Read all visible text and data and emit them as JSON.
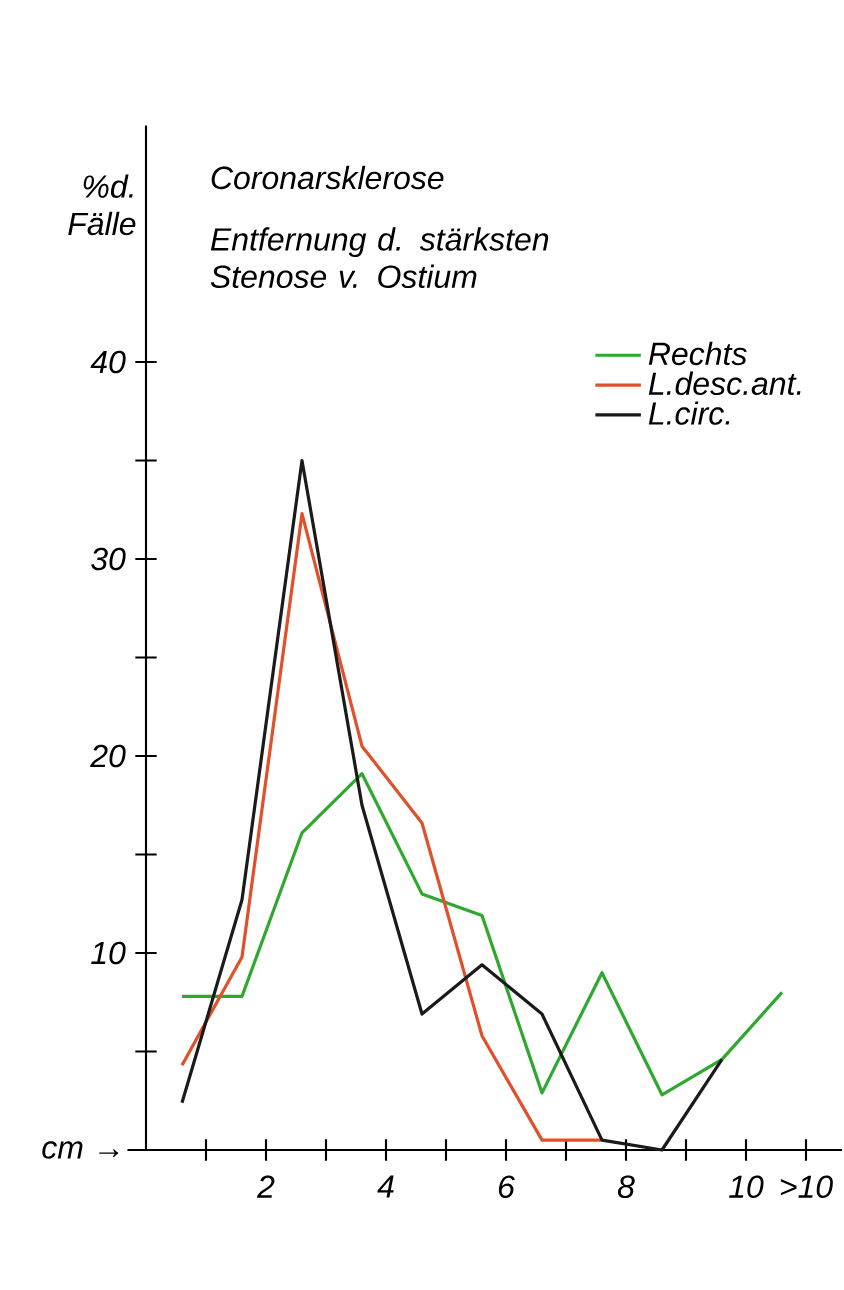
{
  "chart_data": {
    "type": "line",
    "title": "Coronarsklerose",
    "subtitle": "Entfernung d. stärksten Stenose v. Ostium",
    "xlabel": "cm →",
    "ylabel": "%d. Fälle",
    "x": [
      0.6,
      1.6,
      2.6,
      3.6,
      4.6,
      5.6,
      6.6,
      7.6,
      8.6,
      9.6,
      10.6
    ],
    "series": [
      {
        "name": "Rechts",
        "color": "#2ea82e",
        "values": [
          7.8,
          7.8,
          16.1,
          19.1,
          13.0,
          11.9,
          2.9,
          9.0,
          2.8,
          4.6,
          8.0
        ]
      },
      {
        "name": "L.desc.ant.",
        "color": "#e0502a",
        "values": [
          4.3,
          9.8,
          32.3,
          20.5,
          16.6,
          5.8,
          0.5,
          0.5,
          null,
          null,
          null
        ]
      },
      {
        "name": "L.circ.",
        "color": "#1a1a1a",
        "values": [
          2.4,
          12.7,
          35.0,
          17.5,
          6.9,
          9.4,
          6.9,
          0.5,
          0,
          4.6,
          null
        ]
      }
    ],
    "xlim": [
      -1.6,
      11.6
    ],
    "ylim": [
      0,
      52
    ],
    "xticks": [
      {
        "value": 1,
        "label": null
      },
      2,
      {
        "value": 3,
        "label": null
      },
      4,
      {
        "value": 5,
        "label": null
      },
      6,
      {
        "value": 7,
        "label": null
      },
      8,
      {
        "value": 9,
        "label": null
      },
      10,
      {
        "value": 11,
        "label": ">10"
      }
    ],
    "yticks": [
      {
        "value": 5,
        "label": null
      },
      10,
      {
        "value": 15,
        "label": null
      },
      20,
      {
        "value": 25,
        "label": null
      },
      30,
      {
        "value": 35,
        "label": null
      },
      40
    ],
    "legend": "top right",
    "grid": false,
    "marker": "none",
    "line_style": "solid"
  }
}
